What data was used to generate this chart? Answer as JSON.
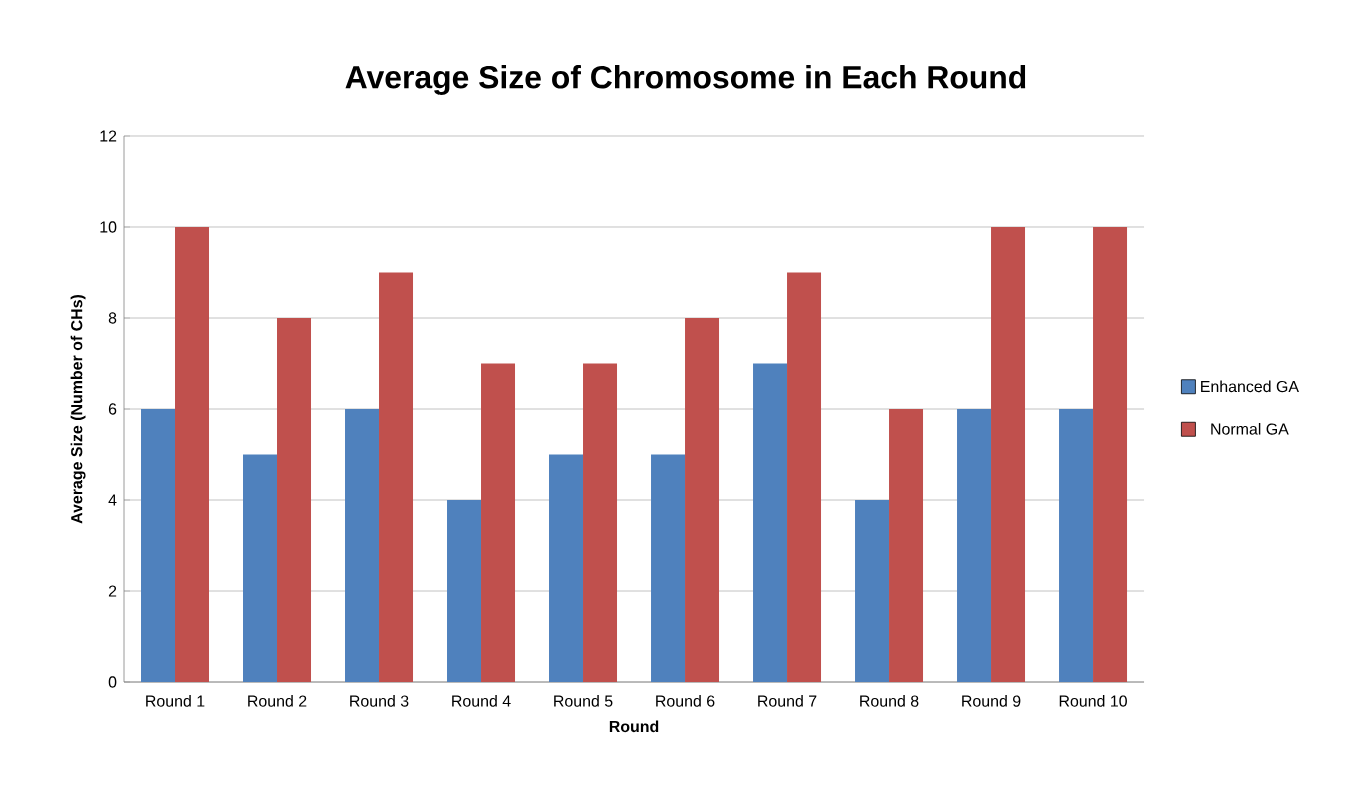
{
  "chart_data": {
    "type": "bar",
    "title": "Average Size of Chromosome in Each Round",
    "xlabel": "Round",
    "ylabel": "Average Size (Number of CHs)",
    "categories": [
      "Round 1",
      "Round 2",
      "Round 3",
      "Round 4",
      "Round 5",
      "Round 6",
      "Round 7",
      "Round 8",
      "Round 9",
      "Round 10"
    ],
    "series": [
      {
        "name": "Enhanced GA",
        "color": "#4f81bd",
        "values": [
          6,
          5,
          6,
          4,
          5,
          5,
          7,
          4,
          6,
          6
        ]
      },
      {
        "name": "Normal GA",
        "color": "#c0504d",
        "values": [
          10,
          8,
          9,
          7,
          7,
          8,
          9,
          6,
          10,
          10
        ]
      }
    ],
    "ylim": [
      0,
      12
    ],
    "yticks": [
      0,
      2,
      4,
      6,
      8,
      10,
      12
    ],
    "grid": "y",
    "legend": "right"
  }
}
